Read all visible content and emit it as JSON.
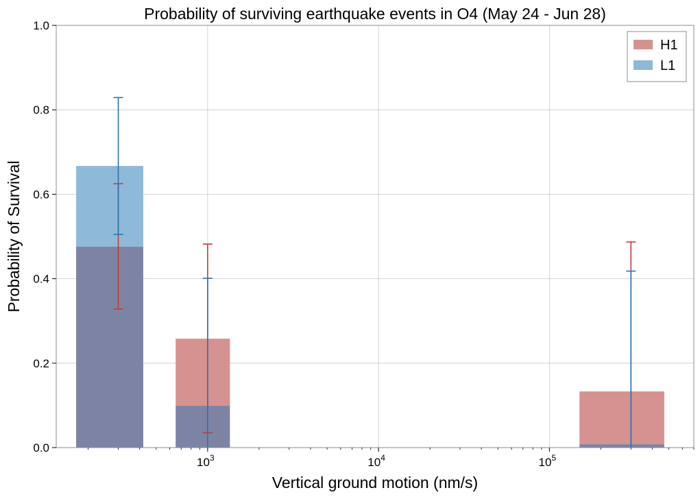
{
  "chart_data": {
    "type": "bar",
    "title": "Probability of surviving earthquake events in O4 (May 24 - Jun 28)",
    "xlabel": "Vertical ground motion (nm/s)",
    "ylabel": "Probability of Survival",
    "xscale": "log",
    "xlim": [
      130,
      700000
    ],
    "ylim": [
      0,
      1.0
    ],
    "yticks": [
      "0.0",
      "0.2",
      "0.4",
      "0.6",
      "0.8",
      "1.0"
    ],
    "xticks": [
      {
        "value": 1000,
        "base": "10",
        "exp": "3"
      },
      {
        "value": 10000,
        "base": "10",
        "exp": "4"
      },
      {
        "value": 100000,
        "base": "10",
        "exp": "5"
      }
    ],
    "grid": true,
    "legend_position": "top-right",
    "series": [
      {
        "name": "H1",
        "color": "#d69290",
        "error_color": "#c43a36",
        "bars": [
          {
            "x": 300,
            "x_low": 170,
            "x_high": 420,
            "value": 0.476,
            "err_low": 0.328,
            "err_high": 0.625
          },
          {
            "x": 1000,
            "x_low": 650,
            "x_high": 1350,
            "value": 0.258,
            "err_low": 0.035,
            "err_high": 0.482
          },
          {
            "x": 300000,
            "x_low": 150000,
            "x_high": 470000,
            "value": 0.133,
            "err_low": 0.0,
            "err_high": 0.487
          }
        ]
      },
      {
        "name": "L1",
        "color": "#8fb9d9",
        "error_color": "#2c73ae",
        "bars": [
          {
            "x": 300,
            "x_low": 170,
            "x_high": 420,
            "value": 0.667,
            "err_low": 0.505,
            "err_high": 0.829
          },
          {
            "x": 1000,
            "x_low": 650,
            "x_high": 1350,
            "value": 0.099,
            "err_low": 0.0,
            "err_high": 0.401
          },
          {
            "x": 300000,
            "x_low": 150000,
            "x_high": 470000,
            "value": 0.008,
            "err_low": 0.0,
            "err_high": 0.418
          }
        ]
      }
    ],
    "overlap_color": "#7d84a3"
  }
}
